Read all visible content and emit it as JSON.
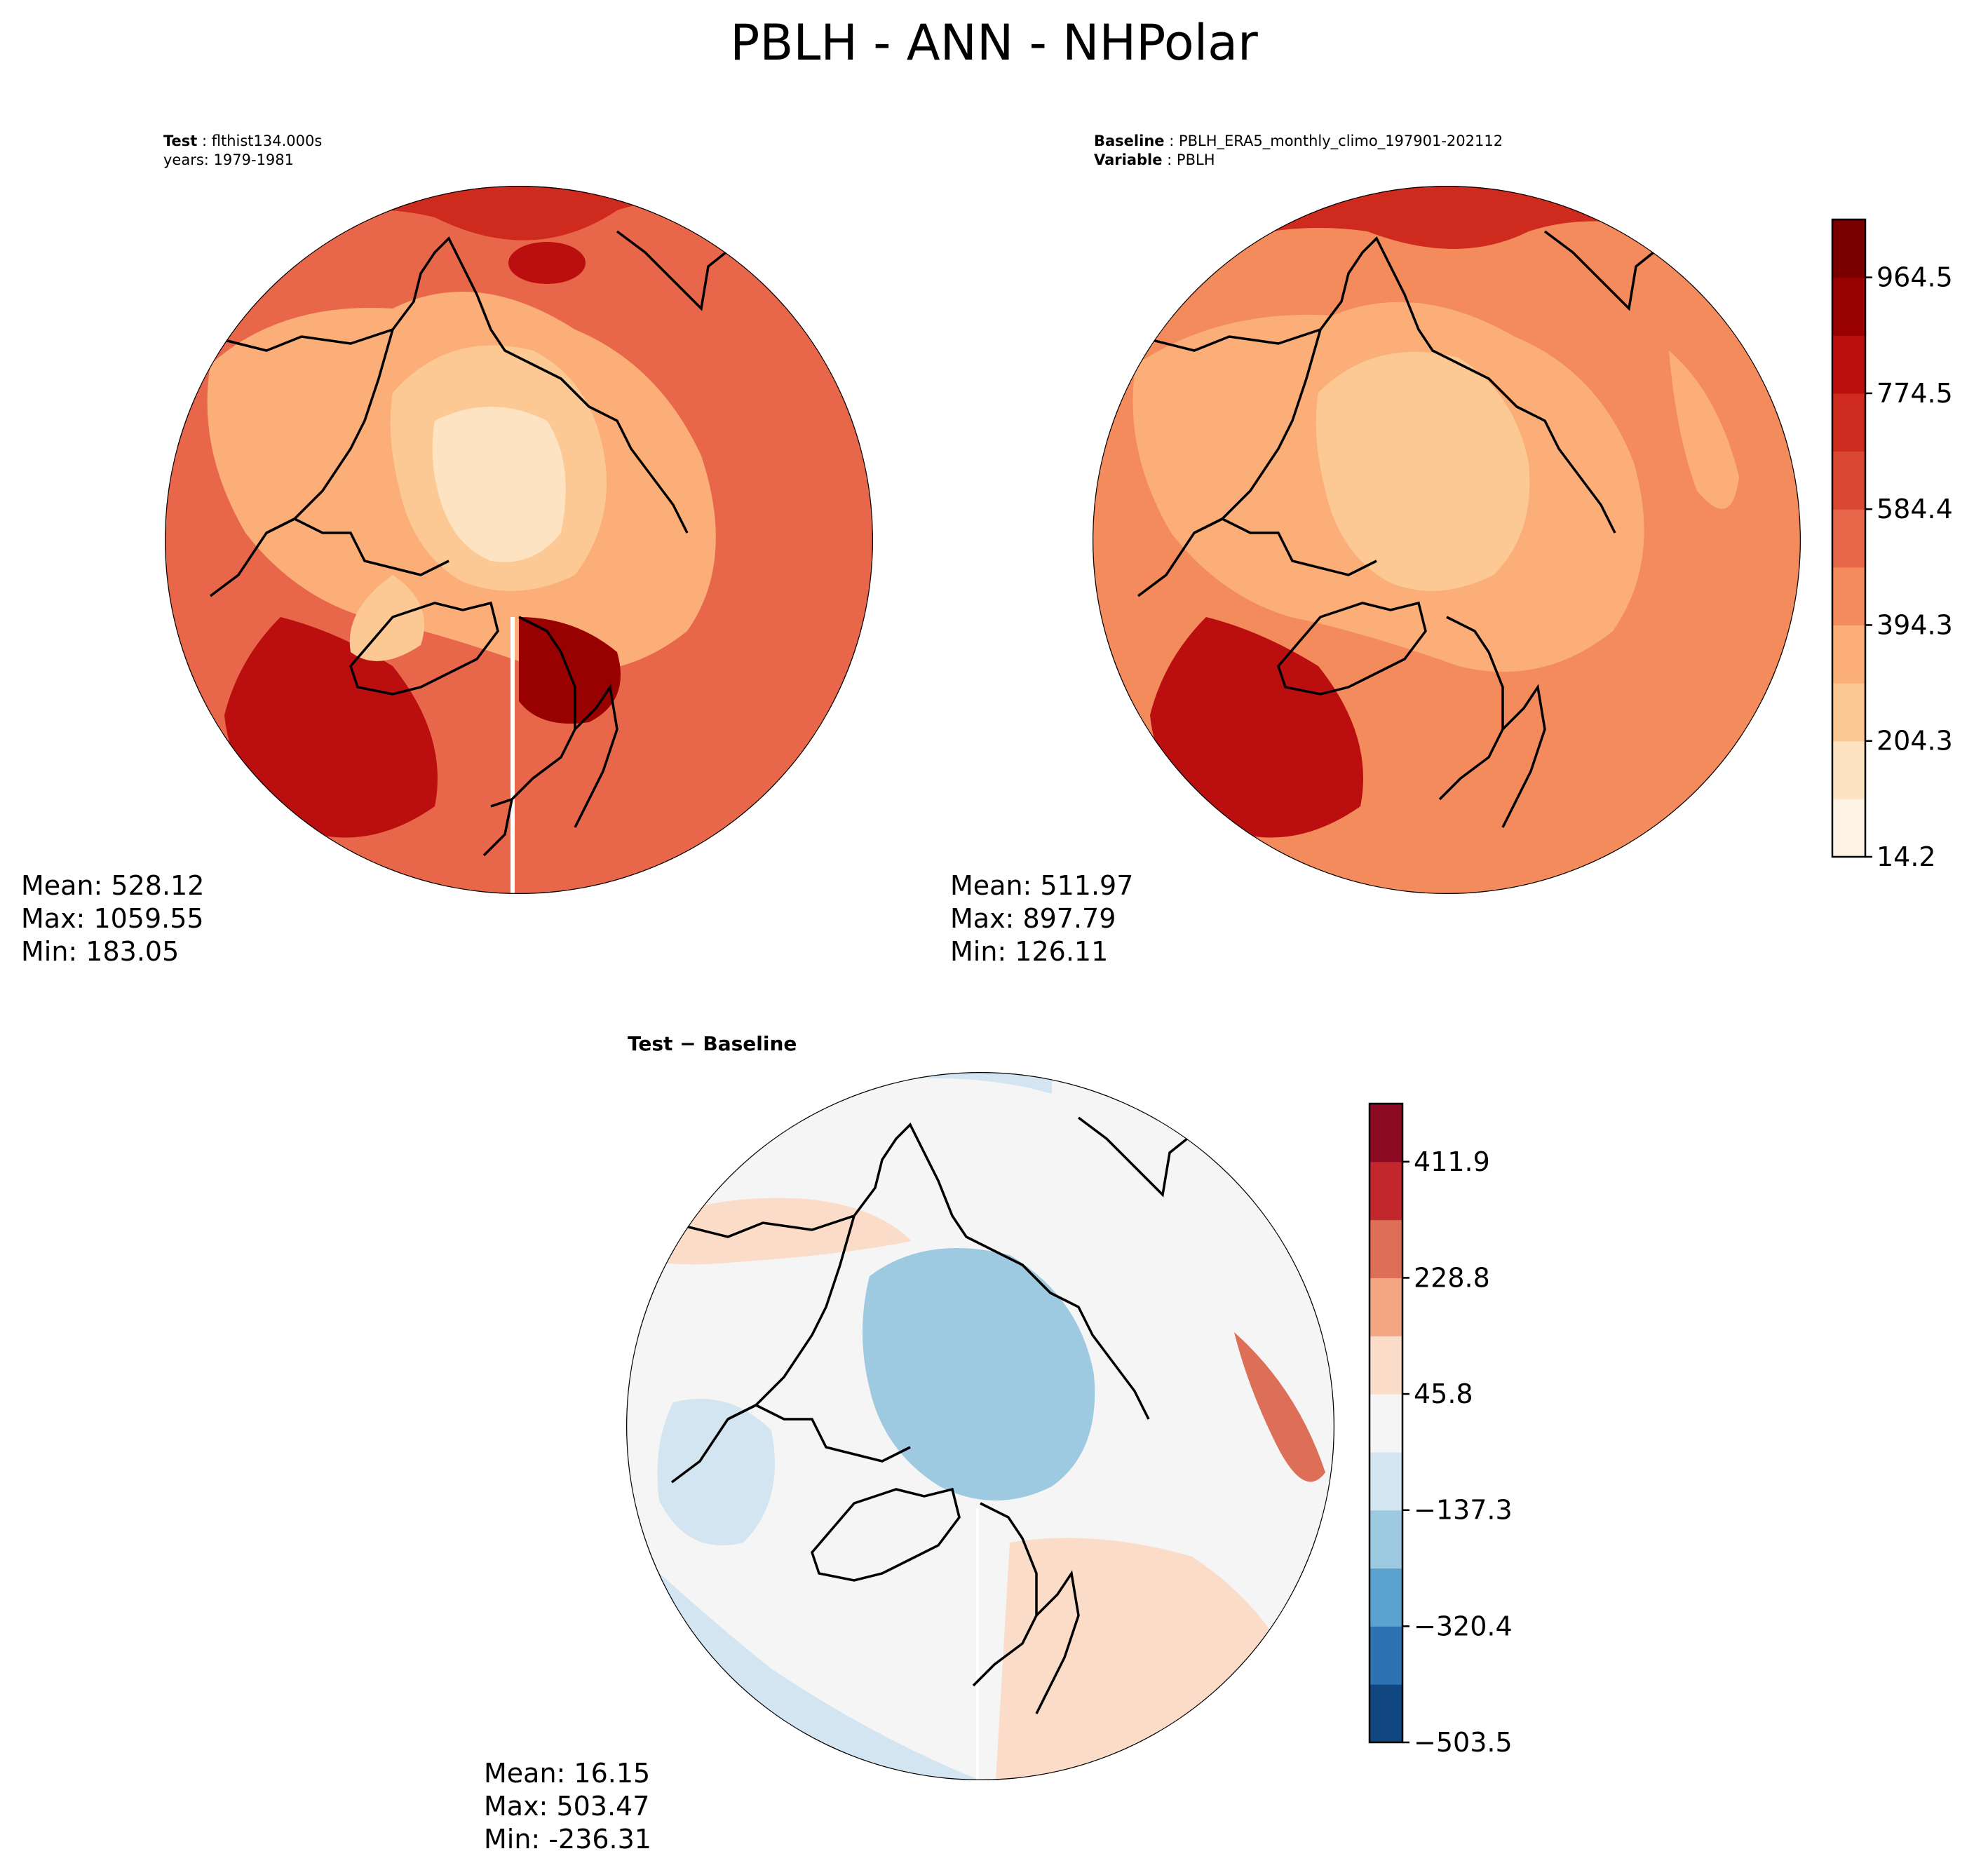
{
  "figure": {
    "title": "PBLH - ANN - NHPolar"
  },
  "panels": {
    "test": {
      "label_bold": "Test",
      "label_value": "flthist134.000s",
      "years": "years: 1979-1981",
      "stats": {
        "mean": "Mean: 528.12",
        "max": "Max: 1059.55",
        "min": "Min: 183.05"
      }
    },
    "baseline": {
      "label_bold": "Baseline",
      "label_value": "PBLH_ERA5_monthly_climo_197901-202112",
      "var_bold": "Variable",
      "var_value": "PBLH",
      "stats": {
        "mean": "Mean: 511.97",
        "max": "Max: 897.79",
        "min": "Min: 126.11"
      }
    },
    "diff": {
      "title_a": "Test",
      "title_op": "−",
      "title_b": "Baseline",
      "stats": {
        "mean": "Mean: 16.15",
        "max": "Max: 503.47",
        "min": "Min: -236.31"
      }
    }
  },
  "chart_data": [
    {
      "type": "heatmap",
      "projection": "north polar stereographic",
      "panel": "test",
      "colormap": "OrRd-like sequential (RdYlBu_r upper half)",
      "colorbar_ticks": [
        "14.2",
        "204.3",
        "394.3",
        "584.4",
        "774.5",
        "964.5"
      ],
      "levels": 11,
      "level_colors": [
        "#fef3e4",
        "#fde3c1",
        "#fcc893",
        "#fbae78",
        "#f38b5d",
        "#e8674a",
        "#da4733",
        "#ce2a1d",
        "#bb0f0f",
        "#990000",
        "#7a0000"
      ]
    },
    {
      "type": "heatmap",
      "projection": "north polar stereographic",
      "panel": "baseline",
      "colorbar_ticks": [
        "14.2",
        "204.3",
        "394.3",
        "584.4",
        "774.5",
        "964.5"
      ],
      "colorbar_range": [
        14.2,
        1059.55
      ]
    },
    {
      "type": "heatmap",
      "projection": "north polar stereographic",
      "panel": "diff",
      "colormap": "RdBu_r diverging",
      "colorbar_ticks": [
        "−503.5",
        "−320.4",
        "−137.3",
        "45.8",
        "228.8",
        "411.9"
      ],
      "colorbar_range": [
        -503.5,
        503.47
      ],
      "level_colors": [
        "#114781",
        "#2d73b3",
        "#5aa2cf",
        "#9ecae1",
        "#d2e5f1",
        "#f5f5f5",
        "#fbdcc8",
        "#f4a582",
        "#dd6f58",
        "#c1272d",
        "#8b0a21"
      ]
    }
  ]
}
